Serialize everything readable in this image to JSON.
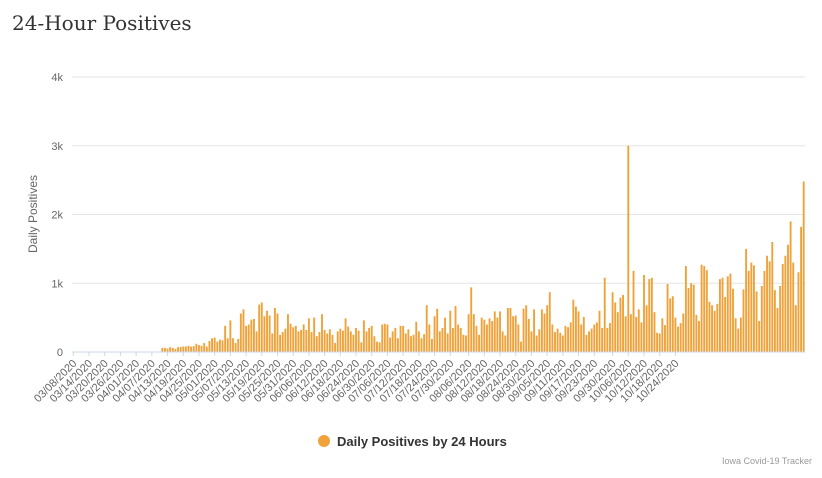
{
  "page": {
    "title": "24-Hour Positives"
  },
  "chart_data": {
    "type": "bar",
    "title": "24-Hour Positives",
    "ylabel": "Daily Positives",
    "xlabel": "",
    "ylim": [
      0,
      4000
    ],
    "yticks": [
      0,
      1000,
      2000,
      3000,
      4000
    ],
    "ytick_labels": [
      "0",
      "1k",
      "2k",
      "3k",
      "4k"
    ],
    "start_date": "03/08/2020",
    "xtick_labels": [
      "03/08/2020",
      "03/14/2020",
      "03/20/2020",
      "03/26/2020",
      "04/01/2020",
      "04/07/2020",
      "04/13/2020",
      "04/19/2020",
      "04/25/2020",
      "05/01/2020",
      "05/07/2020",
      "05/13/2020",
      "05/19/2020",
      "05/25/2020",
      "05/31/2020",
      "06/06/2020",
      "06/12/2020",
      "06/18/2020",
      "06/24/2020",
      "06/30/2020",
      "07/06/2020",
      "07/12/2020",
      "07/18/2020",
      "07/24/2020",
      "07/30/2020",
      "08/06/2020",
      "08/12/2020",
      "08/18/2020",
      "08/24/2020",
      "08/30/2020",
      "09/05/2020",
      "09/11/2020",
      "09/17/2020",
      "09/23/2020",
      "09/30/2020",
      "10/06/2020",
      "10/12/2020",
      "10/18/2020",
      "10/24/2020"
    ],
    "series": [
      {
        "name": "Daily Positives by 24 Hours",
        "color": "#f0a23a",
        "values": [
          0,
          0,
          0,
          0,
          0,
          0,
          0,
          0,
          0,
          0,
          0,
          0,
          0,
          0,
          0,
          0,
          0,
          0,
          0,
          2,
          3,
          5,
          3,
          4,
          5,
          3,
          4,
          4,
          3,
          5,
          3,
          4,
          5,
          4,
          60,
          60,
          50,
          70,
          60,
          45,
          70,
          75,
          80,
          80,
          90,
          80,
          85,
          120,
          100,
          90,
          130,
          80,
          160,
          200,
          210,
          150,
          180,
          170,
          380,
          200,
          460,
          200,
          130,
          190,
          560,
          620,
          380,
          400,
          470,
          480,
          300,
          690,
          720,
          520,
          600,
          530,
          270,
          640,
          560,
          250,
          290,
          340,
          550,
          410,
          360,
          380,
          300,
          320,
          400,
          320,
          490,
          290,
          500,
          230,
          290,
          550,
          320,
          270,
          330,
          250,
          130,
          300,
          340,
          310,
          490,
          370,
          300,
          250,
          350,
          310,
          140,
          460,
          300,
          350,
          380,
          230,
          150,
          140,
          400,
          410,
          400,
          210,
          300,
          350,
          200,
          380,
          380,
          270,
          330,
          230,
          250,
          440,
          300,
          200,
          260,
          680,
          400,
          190,
          520,
          630,
          300,
          350,
          500,
          270,
          600,
          350,
          670,
          400,
          350,
          250,
          240,
          550,
          940,
          550,
          380,
          250,
          500,
          470,
          400,
          490,
          450,
          590,
          500,
          590,
          300,
          240,
          640,
          640,
          520,
          530,
          400,
          150,
          630,
          680,
          480,
          300,
          620,
          240,
          330,
          620,
          560,
          680,
          870,
          400,
          290,
          340,
          280,
          240,
          380,
          360,
          430,
          760,
          660,
          590,
          400,
          510,
          250,
          300,
          340,
          400,
          430,
          600,
          350,
          1080,
          350,
          420,
          870,
          720,
          580,
          790,
          830,
          520,
          3000,
          550,
          1180,
          510,
          620,
          430,
          1120,
          680,
          1060,
          1080,
          580,
          280,
          270,
          490,
          390,
          990,
          780,
          810,
          500,
          370,
          420,
          560,
          1250,
          930,
          1000,
          980,
          540,
          450,
          1270,
          1250,
          1190,
          730,
          680,
          600,
          700,
          1060,
          1080,
          800,
          1100,
          1140,
          920,
          490,
          340,
          500,
          910,
          1500,
          1180,
          1300,
          1260,
          880,
          450,
          960,
          1180,
          1400,
          1320,
          1600,
          900,
          640,
          960,
          1280,
          1400,
          1560,
          1900,
          1300,
          680,
          1160,
          1820,
          2480
        ]
      }
    ],
    "legend": {
      "position": "bottom-center"
    },
    "credits": "Iowa Covid-19 Tracker"
  }
}
